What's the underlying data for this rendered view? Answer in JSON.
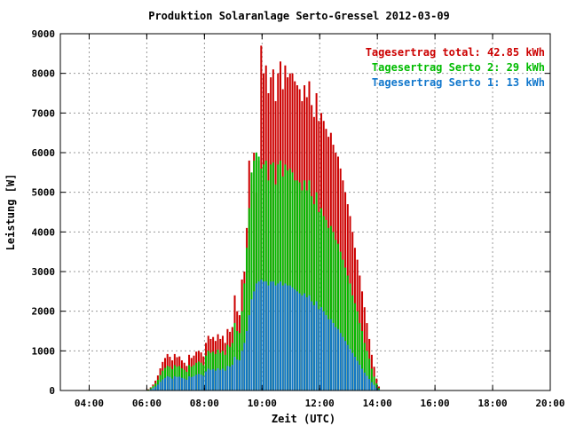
{
  "chart_data": {
    "type": "bar",
    "title": "Produktion Solaranlage Serto-Gressel 2012-03-09",
    "xlabel": "Zeit (UTC)",
    "ylabel": "Leistung [W]",
    "xlim": [
      3,
      20
    ],
    "ylim": [
      0,
      9000
    ],
    "grid": true,
    "legend_position": "top-right",
    "xticks": [
      "04:00",
      "06:00",
      "08:00",
      "10:00",
      "12:00",
      "14:00",
      "16:00",
      "18:00",
      "20:00"
    ],
    "yticks": [
      "0",
      "1000",
      "2000",
      "3000",
      "4000",
      "5000",
      "6000",
      "7000",
      "8000",
      "9000"
    ],
    "x_start_hour": 6.05,
    "x_step_hours": 0.0834,
    "series": [
      {
        "name": "Tagesertrag total: 42.85 kWh",
        "color": "#cc0000",
        "values": [
          30,
          80,
          150,
          250,
          380,
          560,
          720,
          820,
          920,
          850,
          760,
          920,
          840,
          860,
          760,
          700,
          620,
          900,
          820,
          880,
          980,
          1000,
          960,
          860,
          1200,
          1380,
          1300,
          1350,
          1250,
          1420,
          1300,
          1380,
          1200,
          1550,
          1480,
          1600,
          2400,
          2000,
          1900,
          2800,
          3000,
          4100,
          5800,
          5200,
          6000,
          5000,
          5800,
          8700,
          8000,
          8200,
          7500,
          7900,
          8100,
          7300,
          8000,
          8300,
          7600,
          8200,
          7900,
          8000,
          8000,
          7800,
          7700,
          7600,
          7300,
          7700,
          7400,
          7800,
          7200,
          6900,
          7500,
          6800,
          7000,
          6800,
          6600,
          6400,
          6500,
          6200,
          6000,
          5900,
          5600,
          5300,
          5000,
          4700,
          4400,
          4000,
          3600,
          3300,
          2900,
          2500,
          2100,
          1700,
          1300,
          900,
          600,
          300,
          100
        ]
      },
      {
        "name": "Tagesertrag Serto 2: 29 kWh",
        "color": "#00bb00",
        "values": [
          20,
          60,
          110,
          180,
          270,
          390,
          500,
          570,
          620,
          600,
          540,
          640,
          600,
          620,
          560,
          520,
          470,
          640,
          600,
          640,
          700,
          730,
          700,
          640,
          880,
          1000,
          950,
          980,
          920,
          1030,
          950,
          1000,
          900,
          1150,
          1100,
          1200,
          1700,
          1500,
          1450,
          2000,
          2700,
          3600,
          4600,
          5500,
          5800,
          6000,
          5900,
          5600,
          5700,
          5800,
          5300,
          5700,
          5750,
          5200,
          5700,
          5800,
          5400,
          5700,
          5550,
          5600,
          5500,
          5300,
          5300,
          5250,
          5050,
          5300,
          5050,
          5300,
          4900,
          4700,
          5000,
          4500,
          4600,
          4400,
          4300,
          4100,
          4150,
          4000,
          3800,
          3700,
          3500,
          3300,
          3100,
          2900,
          2700,
          2400,
          2200,
          2000,
          1700,
          1500,
          1200,
          1000,
          800,
          550,
          350,
          180,
          60
        ]
      },
      {
        "name": "Tagesertrag Serto 1: 13 kWh",
        "color": "#1177cc",
        "values": [
          10,
          30,
          60,
          100,
          150,
          220,
          280,
          320,
          360,
          340,
          300,
          360,
          340,
          350,
          320,
          300,
          270,
          360,
          340,
          360,
          400,
          420,
          400,
          370,
          480,
          550,
          520,
          540,
          500,
          560,
          520,
          550,
          500,
          620,
          600,
          650,
          850,
          780,
          760,
          1000,
          1200,
          1500,
          1900,
          2300,
          2500,
          2700,
          2750,
          2800,
          2750,
          2750,
          2650,
          2750,
          2750,
          2650,
          2700,
          2750,
          2650,
          2700,
          2650,
          2650,
          2600,
          2550,
          2500,
          2450,
          2400,
          2450,
          2350,
          2400,
          2250,
          2150,
          2250,
          2050,
          2100,
          2000,
          1900,
          1800,
          1800,
          1700,
          1600,
          1550,
          1450,
          1350,
          1250,
          1150,
          1050,
          950,
          850,
          750,
          650,
          550,
          450,
          370,
          290,
          210,
          140,
          70,
          25
        ]
      }
    ]
  }
}
